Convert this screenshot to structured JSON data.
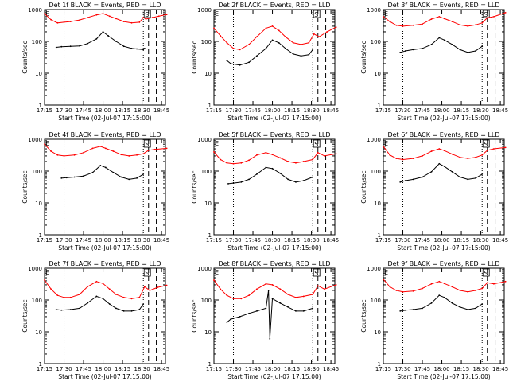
{
  "chart_data": [
    {
      "type": "line",
      "title": "Det 1f BLACK = Events, RED = LLD",
      "xlabel": "Start Time (02-Jul-07 17:15:00)",
      "ylabel": "Counts/sec",
      "yscale": "log",
      "ylim": [
        1,
        1000
      ],
      "x_ticks": [
        "17:15",
        "17:30",
        "17:45",
        "18:00",
        "18:15",
        "18:30",
        "18:45"
      ],
      "y_ticks": [
        "1",
        "10",
        "100",
        "1000"
      ],
      "top_flags": [
        "E",
        "S"
      ],
      "grid": false,
      "series": [
        {
          "name": "Events",
          "color": "#000000",
          "x": [
            "17:24",
            "17:28",
            "17:35",
            "17:42",
            "17:48",
            "17:55",
            "18:00",
            "18:04",
            "18:10",
            "18:16",
            "18:22",
            "18:26",
            "18:31",
            "18:32",
            "18:36",
            "18:40",
            "18:44",
            "18:49"
          ],
          "y": [
            65,
            68,
            70,
            72,
            85,
            120,
            200,
            150,
            100,
            70,
            60,
            58,
            55,
            60,
            null,
            null,
            null,
            null
          ]
        },
        {
          "name": "LLD",
          "color": "#ff0000",
          "x": [
            "17:15",
            "17:20",
            "17:25",
            "17:30",
            "17:35",
            "17:42",
            "17:48",
            "17:55",
            "18:00",
            "18:05",
            "18:10",
            "18:16",
            "18:22",
            "18:28",
            "18:31",
            "18:33",
            "18:38",
            "18:43",
            "18:49"
          ],
          "y": [
            750,
            480,
            380,
            400,
            420,
            470,
            560,
            680,
            750,
            620,
            520,
            420,
            380,
            400,
            560,
            500,
            560,
            620,
            700
          ]
        }
      ],
      "annotations": {
        "dotted_lines": [
          "17:30",
          "18:31"
        ],
        "dashed_lines": [
          "18:35",
          "18:41"
        ]
      }
    },
    {
      "type": "line",
      "title": "Det 2f BLACK = Events, RED = LLD",
      "xlabel": "Start Time (02-Jul-07 17:15:00)",
      "ylabel": "Counts/sec",
      "yscale": "log",
      "ylim": [
        1,
        1000
      ],
      "x_ticks": [
        "17:15",
        "17:30",
        "17:45",
        "18:00",
        "18:15",
        "18:30",
        "18:45"
      ],
      "y_ticks": [
        "1",
        "10",
        "100",
        "1000"
      ],
      "top_flags": [
        "E",
        "S"
      ],
      "grid": false,
      "series": [
        {
          "name": "Events",
          "color": "#000000",
          "x": [
            "17:25",
            "17:28",
            "17:35",
            "17:42",
            "17:48",
            "17:55",
            "18:00",
            "18:05",
            "18:10",
            "18:16",
            "18:22",
            "18:28",
            "18:31"
          ],
          "y": [
            25,
            20,
            18,
            22,
            35,
            60,
            110,
            90,
            60,
            40,
            35,
            38,
            55
          ]
        },
        {
          "name": "LLD",
          "color": "#ff0000",
          "x": [
            "17:15",
            "17:20",
            "17:25",
            "17:30",
            "17:35",
            "17:42",
            "17:48",
            "17:55",
            "18:00",
            "18:05",
            "18:10",
            "18:16",
            "18:22",
            "18:28",
            "18:32",
            "18:36",
            "18:42",
            "18:49"
          ],
          "y": [
            260,
            150,
            90,
            60,
            55,
            80,
            140,
            260,
            300,
            220,
            140,
            90,
            80,
            90,
            170,
            140,
            200,
            280
          ]
        }
      ],
      "annotations": {
        "dotted_lines": [
          "17:30",
          "18:31"
        ],
        "dashed_lines": [
          "18:35",
          "18:41"
        ]
      }
    },
    {
      "type": "line",
      "title": "Det 3f BLACK = Events, RED = LLD",
      "xlabel": "Start Time (02-Jul-07 17:15:00)",
      "ylabel": "Counts/sec",
      "yscale": "log",
      "ylim": [
        1,
        1000
      ],
      "x_ticks": [
        "17:15",
        "17:30",
        "17:45",
        "18:00",
        "18:15",
        "18:30",
        "18:45"
      ],
      "y_ticks": [
        "1",
        "10",
        "100",
        "1000"
      ],
      "top_flags": [
        "E",
        "S"
      ],
      "grid": false,
      "series": [
        {
          "name": "Events",
          "color": "#000000",
          "x": [
            "17:28",
            "17:32",
            "17:38",
            "17:45",
            "17:52",
            "17:58",
            "18:02",
            "18:08",
            "18:14",
            "18:20",
            "18:26",
            "18:31"
          ],
          "y": [
            45,
            50,
            55,
            60,
            80,
            130,
            110,
            80,
            55,
            45,
            50,
            70
          ]
        },
        {
          "name": "LLD",
          "color": "#ff0000",
          "x": [
            "17:15",
            "17:20",
            "17:25",
            "17:30",
            "17:38",
            "17:45",
            "17:52",
            "17:58",
            "18:02",
            "18:08",
            "18:14",
            "18:20",
            "18:26",
            "18:31",
            "18:35",
            "18:40",
            "18:49"
          ],
          "y": [
            600,
            420,
            320,
            300,
            320,
            350,
            500,
            600,
            520,
            420,
            330,
            300,
            330,
            380,
            550,
            600,
            800
          ]
        }
      ],
      "annotations": {
        "dotted_lines": [
          "17:30",
          "18:31"
        ],
        "dashed_lines": [
          "18:35",
          "18:41"
        ]
      }
    },
    {
      "type": "line",
      "title": "Det 4f BLACK = Events, RED = LLD",
      "xlabel": "Start Time (02-Jul-07 17:15:00)",
      "ylabel": "Counts/sec",
      "yscale": "log",
      "ylim": [
        1,
        1000
      ],
      "x_ticks": [
        "17:15",
        "17:30",
        "17:45",
        "18:00",
        "18:15",
        "18:30",
        "18:45"
      ],
      "y_ticks": [
        "1",
        "10",
        "100",
        "1000"
      ],
      "top_flags": [
        "E",
        "S"
      ],
      "grid": false,
      "series": [
        {
          "name": "Events",
          "color": "#000000",
          "x": [
            "17:28",
            "17:32",
            "17:38",
            "17:45",
            "17:52",
            "17:58",
            "18:02",
            "18:08",
            "18:14",
            "18:20",
            "18:26",
            "18:31"
          ],
          "y": [
            60,
            62,
            65,
            70,
            90,
            150,
            130,
            90,
            65,
            55,
            60,
            80
          ]
        },
        {
          "name": "LLD",
          "color": "#ff0000",
          "x": [
            "17:15",
            "17:20",
            "17:25",
            "17:30",
            "17:38",
            "17:45",
            "17:52",
            "17:58",
            "18:02",
            "18:08",
            "18:14",
            "18:20",
            "18:26",
            "18:31",
            "18:35",
            "18:40",
            "18:49"
          ],
          "y": [
            700,
            420,
            320,
            300,
            320,
            380,
            520,
            600,
            520,
            420,
            330,
            300,
            320,
            350,
            450,
            480,
            520
          ]
        }
      ],
      "annotations": {
        "dotted_lines": [
          "17:30",
          "18:31"
        ],
        "dashed_lines": [
          "18:35",
          "18:41"
        ]
      }
    },
    {
      "type": "line",
      "title": "Det 5f BLACK = Events, RED = LLD",
      "xlabel": "Start Time (02-Jul-07 17:15:00)",
      "ylabel": "Counts/sec",
      "yscale": "log",
      "ylim": [
        1,
        1000
      ],
      "x_ticks": [
        "17:15",
        "17:30",
        "17:45",
        "18:00",
        "18:15",
        "18:30",
        "18:45"
      ],
      "y_ticks": [
        "1",
        "10",
        "100",
        "1000"
      ],
      "top_flags": [
        "E",
        "S"
      ],
      "grid": false,
      "series": [
        {
          "name": "Events",
          "color": "#000000",
          "x": [
            "17:26",
            "17:30",
            "17:36",
            "17:42",
            "17:48",
            "17:55",
            "18:00",
            "18:06",
            "18:12",
            "18:18",
            "18:24",
            "18:31"
          ],
          "y": [
            40,
            42,
            45,
            55,
            80,
            130,
            120,
            85,
            55,
            45,
            50,
            65
          ]
        },
        {
          "name": "LLD",
          "color": "#ff0000",
          "x": [
            "17:15",
            "17:20",
            "17:25",
            "17:30",
            "17:36",
            "17:42",
            "17:48",
            "17:55",
            "18:00",
            "18:06",
            "18:12",
            "18:18",
            "18:24",
            "18:31",
            "18:35",
            "18:40",
            "18:49"
          ],
          "y": [
            400,
            230,
            180,
            170,
            180,
            220,
            320,
            380,
            330,
            260,
            200,
            180,
            200,
            230,
            380,
            300,
            350
          ]
        }
      ],
      "annotations": {
        "dotted_lines": [
          "17:30",
          "18:31"
        ],
        "dashed_lines": [
          "18:35",
          "18:41"
        ]
      }
    },
    {
      "type": "line",
      "title": "Det 6f BLACK = Events, RED = LLD",
      "xlabel": "Start Time (02-Jul-07 17:15:00)",
      "ylabel": "Counts/sec",
      "yscale": "log",
      "ylim": [
        1,
        1000
      ],
      "x_ticks": [
        "17:15",
        "17:30",
        "17:45",
        "18:00",
        "18:15",
        "18:30",
        "18:45"
      ],
      "y_ticks": [
        "1",
        "10",
        "100",
        "1000"
      ],
      "top_flags": [
        "E",
        "S"
      ],
      "grid": false,
      "series": [
        {
          "name": "Events",
          "color": "#000000",
          "x": [
            "17:28",
            "17:32",
            "17:38",
            "17:45",
            "17:52",
            "17:58",
            "18:02",
            "18:08",
            "18:14",
            "18:20",
            "18:26",
            "18:31"
          ],
          "y": [
            45,
            50,
            55,
            65,
            95,
            170,
            140,
            95,
            65,
            55,
            60,
            80
          ]
        },
        {
          "name": "LLD",
          "color": "#ff0000",
          "x": [
            "17:15",
            "17:20",
            "17:25",
            "17:30",
            "17:38",
            "17:45",
            "17:52",
            "17:58",
            "18:02",
            "18:08",
            "18:14",
            "18:20",
            "18:26",
            "18:31",
            "18:35",
            "18:40",
            "18:49"
          ],
          "y": [
            600,
            320,
            250,
            230,
            250,
            300,
            420,
            500,
            440,
            340,
            270,
            250,
            270,
            320,
            450,
            500,
            550
          ]
        }
      ],
      "annotations": {
        "dotted_lines": [
          "17:30",
          "18:31"
        ],
        "dashed_lines": [
          "18:35",
          "18:41"
        ]
      }
    },
    {
      "type": "line",
      "title": "Det 7f BLACK = Events, RED = LLD",
      "xlabel": "Start Time (02-Jul-07 17:15:00)",
      "ylabel": "Counts/sec",
      "yscale": "log",
      "ylim": [
        1,
        1000
      ],
      "x_ticks": [
        "17:15",
        "17:30",
        "17:45",
        "18:00",
        "18:15",
        "18:30",
        "18:45"
      ],
      "y_ticks": [
        "1",
        "10",
        "100",
        "1000"
      ],
      "top_flags": [
        "E",
        "S"
      ],
      "grid": false,
      "series": [
        {
          "name": "Events",
          "color": "#000000",
          "x": [
            "17:24",
            "17:28",
            "17:35",
            "17:42",
            "17:48",
            "17:55",
            "18:00",
            "18:05",
            "18:10",
            "18:16",
            "18:22",
            "18:28",
            "18:31"
          ],
          "y": [
            50,
            48,
            50,
            55,
            80,
            130,
            110,
            75,
            55,
            45,
            45,
            50,
            75
          ]
        },
        {
          "name": "LLD",
          "color": "#ff0000",
          "x": [
            "17:15",
            "17:20",
            "17:25",
            "17:30",
            "17:35",
            "17:42",
            "17:48",
            "17:55",
            "18:00",
            "18:05",
            "18:10",
            "18:16",
            "18:22",
            "18:28",
            "18:32",
            "18:36",
            "18:42",
            "18:49"
          ],
          "y": [
            420,
            220,
            140,
            120,
            120,
            150,
            260,
            380,
            330,
            220,
            150,
            120,
            110,
            120,
            260,
            200,
            250,
            290
          ]
        }
      ],
      "annotations": {
        "dotted_lines": [
          "17:30",
          "18:31"
        ],
        "dashed_lines": [
          "18:35",
          "18:41"
        ]
      }
    },
    {
      "type": "line",
      "title": "Det 8f BLACK = Events, RED = LLD",
      "xlabel": "Start Time (02-Jul-07 17:15:00)",
      "ylabel": "Counts/sec",
      "yscale": "log",
      "ylim": [
        1,
        1000
      ],
      "x_ticks": [
        "17:15",
        "17:30",
        "17:45",
        "18:00",
        "18:15",
        "18:30",
        "18:45"
      ],
      "y_ticks": [
        "1",
        "10",
        "100",
        "1000"
      ],
      "top_flags": [
        "E",
        "S"
      ],
      "grid": false,
      "series": [
        {
          "name": "Events",
          "color": "#000000",
          "x": [
            "17:25",
            "17:28",
            "17:35",
            "17:42",
            "17:48",
            "17:55",
            "17:57",
            "17:58",
            "18:00",
            "18:06",
            "18:12",
            "18:18",
            "18:24",
            "18:31"
          ],
          "y": [
            20,
            25,
            30,
            38,
            45,
            55,
            200,
            6,
            110,
            80,
            60,
            45,
            45,
            55
          ]
        },
        {
          "name": "LLD",
          "color": "#ff0000",
          "x": [
            "17:15",
            "17:20",
            "17:25",
            "17:30",
            "17:36",
            "17:42",
            "17:48",
            "17:55",
            "18:00",
            "18:06",
            "18:12",
            "18:18",
            "18:24",
            "18:31",
            "18:35",
            "18:40",
            "18:49"
          ],
          "y": [
            420,
            220,
            140,
            110,
            110,
            140,
            220,
            320,
            300,
            220,
            150,
            120,
            130,
            150,
            280,
            220,
            300
          ]
        }
      ],
      "annotations": {
        "dotted_lines": [
          "17:30",
          "18:31"
        ],
        "dashed_lines": [
          "18:35",
          "18:41"
        ]
      }
    },
    {
      "type": "line",
      "title": "Det 9f BLACK = Events, RED = LLD",
      "xlabel": "Start Time (02-Jul-07 17:15:00)",
      "ylabel": "Counts/sec",
      "yscale": "log",
      "ylim": [
        1,
        1000
      ],
      "x_ticks": [
        "17:15",
        "17:30",
        "17:45",
        "18:00",
        "18:15",
        "18:30",
        "18:45"
      ],
      "y_ticks": [
        "1",
        "10",
        "100",
        "1000"
      ],
      "top_flags": [
        "E",
        "S"
      ],
      "grid": false,
      "series": [
        {
          "name": "Events",
          "color": "#000000",
          "x": [
            "17:28",
            "17:32",
            "17:38",
            "17:45",
            "17:52",
            "17:58",
            "18:02",
            "18:08",
            "18:14",
            "18:20",
            "18:26",
            "18:31"
          ],
          "y": [
            45,
            48,
            50,
            55,
            80,
            140,
            120,
            80,
            60,
            50,
            55,
            75
          ]
        },
        {
          "name": "LLD",
          "color": "#ff0000",
          "x": [
            "17:15",
            "17:20",
            "17:25",
            "17:30",
            "17:38",
            "17:45",
            "17:52",
            "17:58",
            "18:02",
            "18:08",
            "18:14",
            "18:20",
            "18:26",
            "18:31",
            "18:35",
            "18:40",
            "18:49"
          ],
          "y": [
            450,
            260,
            200,
            180,
            190,
            230,
            320,
            380,
            330,
            260,
            200,
            180,
            200,
            230,
            350,
            320,
            380
          ]
        }
      ],
      "annotations": {
        "dotted_lines": [
          "17:30",
          "18:31"
        ],
        "dashed_lines": [
          "18:35",
          "18:41"
        ]
      }
    }
  ]
}
